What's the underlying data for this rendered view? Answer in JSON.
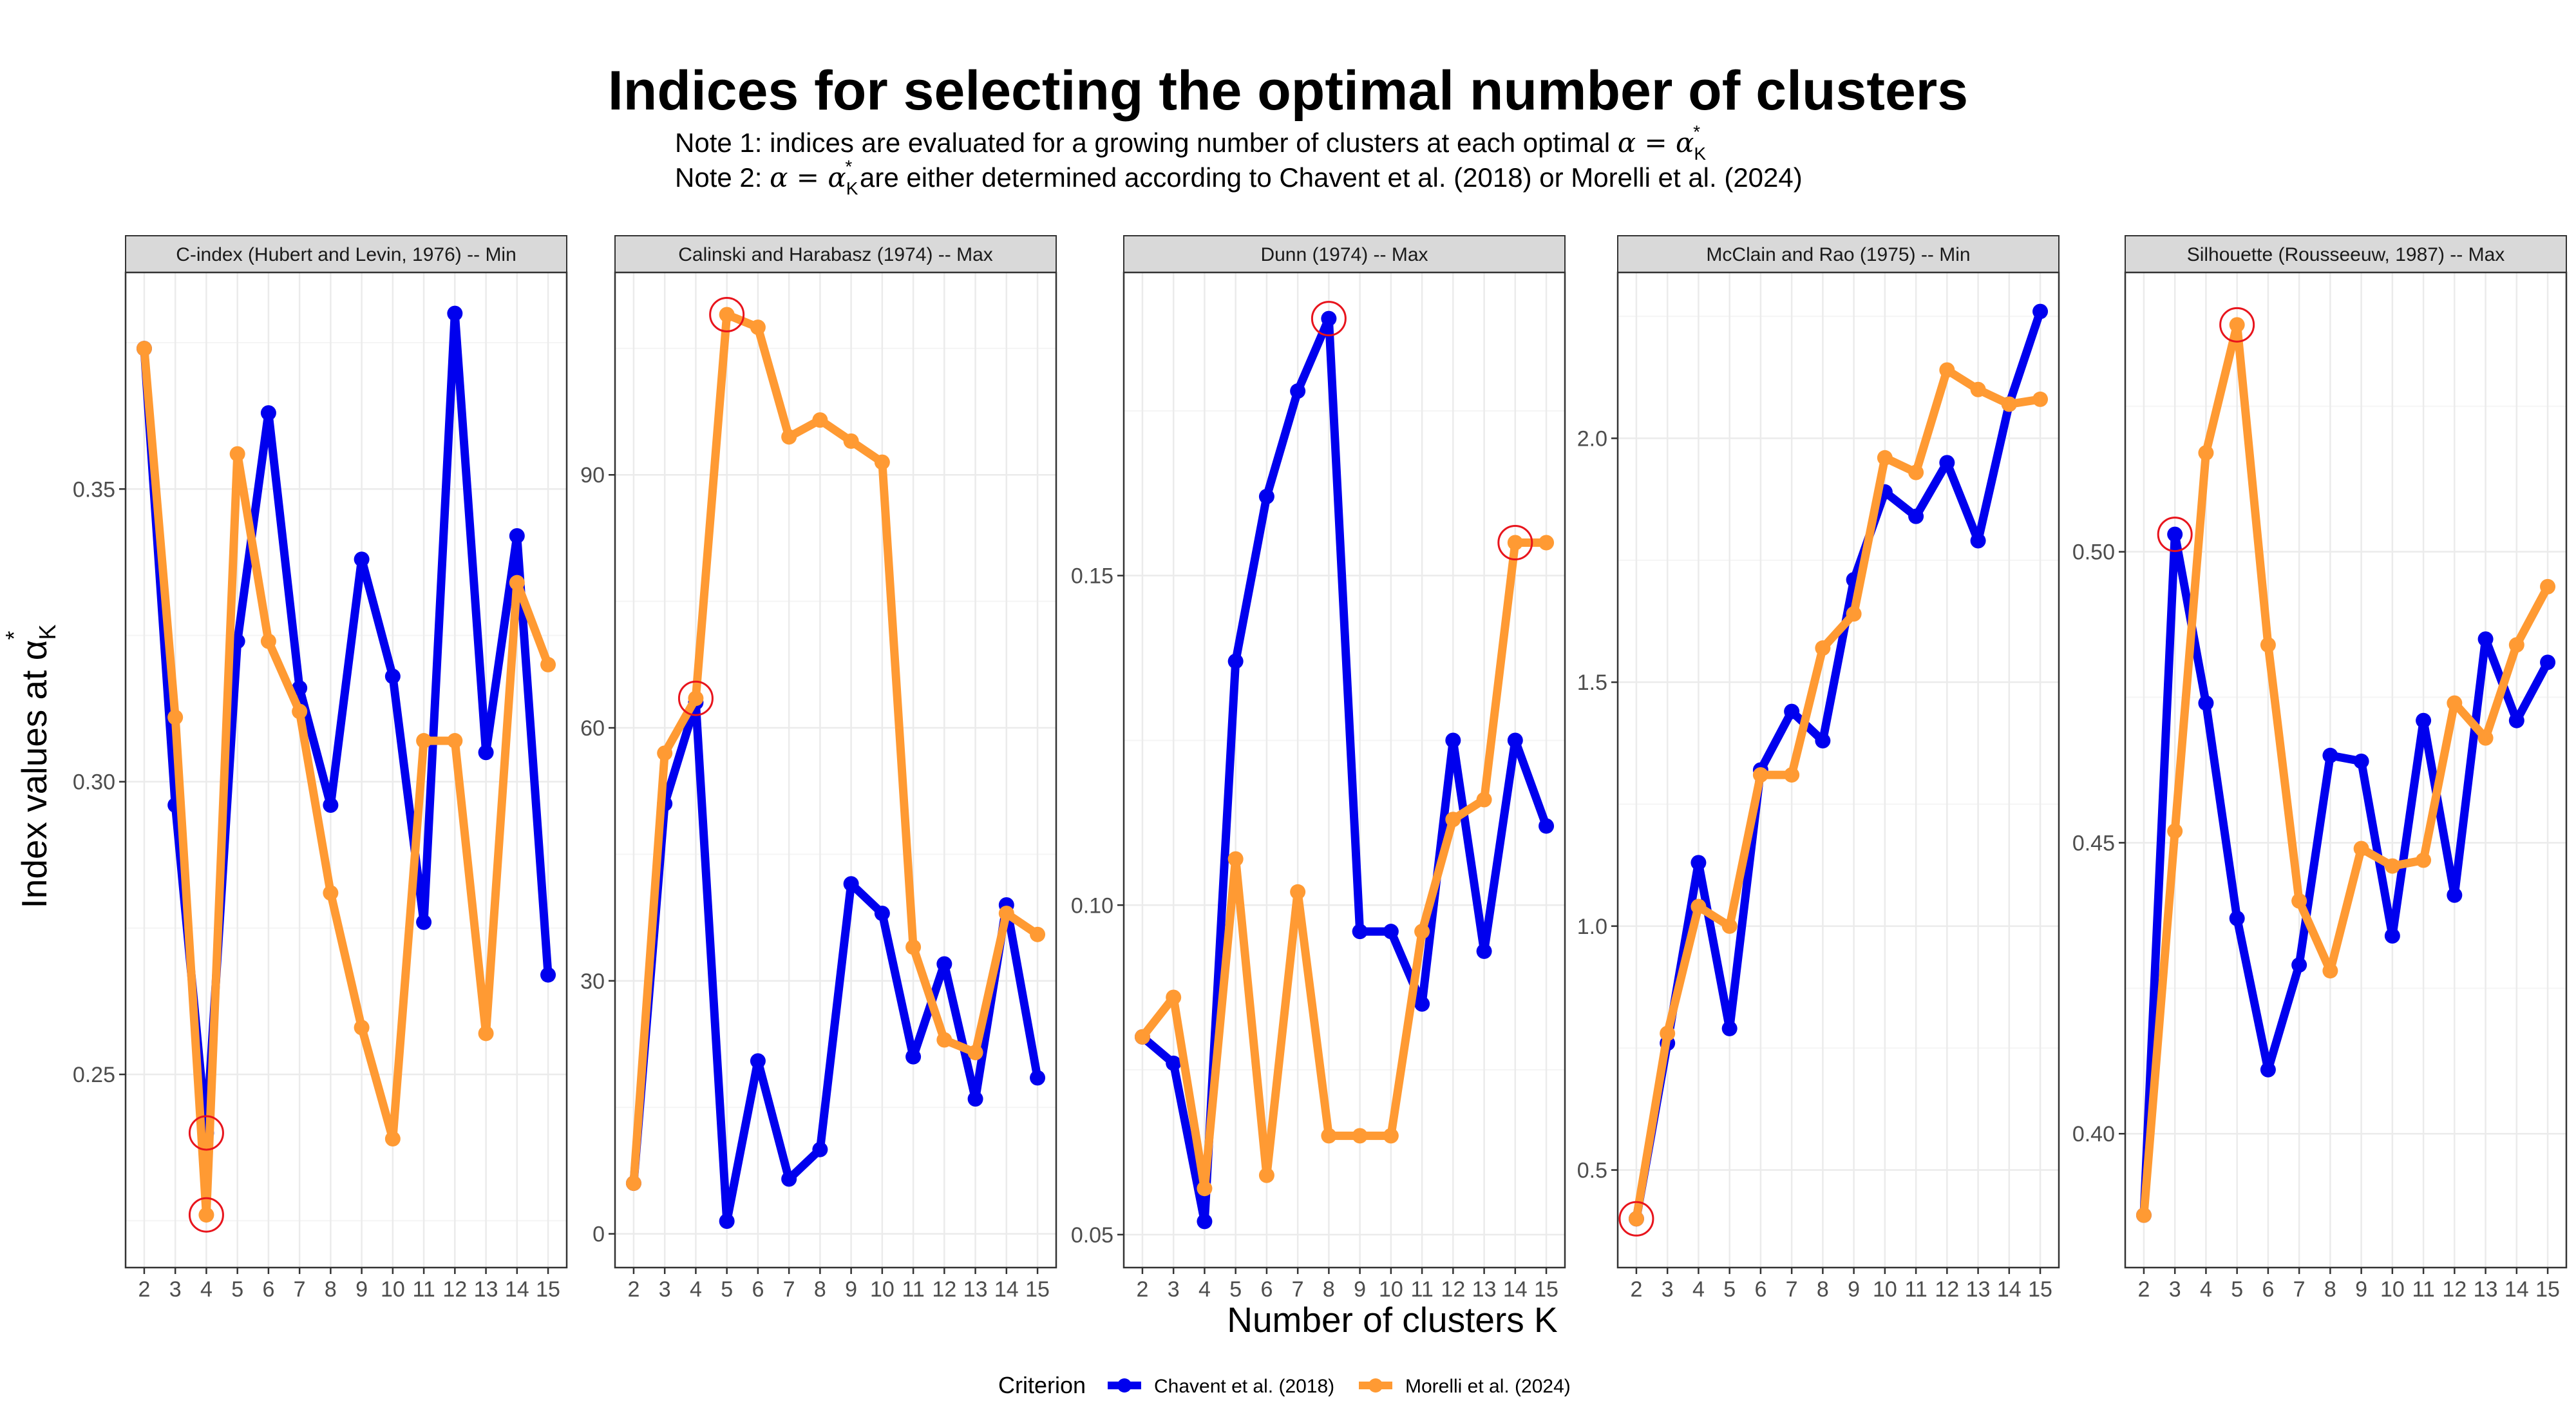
{
  "title": "Indices for selecting the optimal number of clusters",
  "notes": [
    {
      "prefix": "Note 1: indices are evaluated for a growing number of clusters at each optimal ",
      "suffix": ""
    },
    {
      "prefix": "Note 2: ",
      "suffix": " are either determined according to Chavent et al. (2018) or Morelli et al. (2024)"
    }
  ],
  "note_math": "α = α",
  "note_math_sub": "K",
  "note_math_sup": "*",
  "xlabel": "Number of clusters K",
  "ylabel_prefix": "Index values at α",
  "ylabel_sub": "K",
  "ylabel_sup": "*",
  "legend": {
    "title": "Criterion",
    "entries": [
      "Chavent et al. (2018)",
      "Morelli et al. (2024)"
    ]
  },
  "colors": {
    "chavent": "#0000ee",
    "morelli": "#ff9a33",
    "highlight": "#e8141c",
    "grid": "#ebebeb",
    "strip": "#d9d9d9"
  },
  "chart_data": [
    {
      "type": "line",
      "title": "C-index (Hubert and Levin, 1976) -- Min",
      "x": [
        2,
        3,
        4,
        5,
        6,
        7,
        8,
        9,
        10,
        11,
        12,
        13,
        14,
        15
      ],
      "ylim": [
        0.217,
        0.387
      ],
      "yticks": [
        0.25,
        0.3,
        0.35
      ],
      "ytick_labels": [
        "0.25",
        "0.30",
        "0.35"
      ],
      "series": [
        {
          "name": "Chavent et al. (2018)",
          "values": [
            0.374,
            0.296,
            0.24,
            0.324,
            0.363,
            0.316,
            0.296,
            0.338,
            0.318,
            0.276,
            0.38,
            0.305,
            0.342,
            0.267
          ]
        },
        {
          "name": "Morelli et al. (2024)",
          "values": [
            0.374,
            0.311,
            0.226,
            0.356,
            0.324,
            0.312,
            0.281,
            0.258,
            0.239,
            0.307,
            0.307,
            0.257,
            0.334,
            0.32
          ]
        }
      ],
      "highlights": [
        {
          "x": 4,
          "y": 0.24
        },
        {
          "x": 4,
          "y": 0.226
        }
      ]
    },
    {
      "type": "line",
      "title": "Calinski and Harabasz (1974) -- Max",
      "x": [
        2,
        3,
        4,
        5,
        6,
        7,
        8,
        9,
        10,
        11,
        12,
        13,
        14,
        15
      ],
      "ylim": [
        -4,
        114
      ],
      "yticks": [
        0,
        30,
        60,
        90
      ],
      "ytick_labels": [
        "0",
        "30",
        "60",
        "90"
      ],
      "series": [
        {
          "name": "Chavent et al. (2018)",
          "values": [
            6,
            51,
            63,
            1.5,
            20.5,
            6.5,
            10,
            41.5,
            38,
            21,
            32,
            16,
            39,
            18.5
          ]
        },
        {
          "name": "Morelli et al. (2024)",
          "values": [
            6,
            57,
            63.5,
            109,
            107.5,
            94.5,
            96.5,
            94,
            91.5,
            34,
            23,
            21.5,
            38,
            35.5
          ]
        }
      ],
      "highlights": [
        {
          "x": 4,
          "y": 63.5
        },
        {
          "x": 5,
          "y": 109
        }
      ]
    },
    {
      "type": "line",
      "title": "Dunn (1974) -- Max",
      "x": [
        2,
        3,
        4,
        5,
        6,
        7,
        8,
        9,
        10,
        11,
        12,
        13,
        14,
        15
      ],
      "ylim": [
        0.045,
        0.196
      ],
      "yticks": [
        0.05,
        0.1,
        0.15
      ],
      "ytick_labels": [
        "0.05",
        "0.10",
        "0.15"
      ],
      "series": [
        {
          "name": "Chavent et al. (2018)",
          "values": [
            0.08,
            0.076,
            0.052,
            0.137,
            0.162,
            0.178,
            0.189,
            0.096,
            0.096,
            0.085,
            0.125,
            0.093,
            0.125,
            0.112
          ]
        },
        {
          "name": "Morelli et al. (2024)",
          "values": [
            0.08,
            0.086,
            0.057,
            0.107,
            0.059,
            0.102,
            0.065,
            0.065,
            0.065,
            0.096,
            0.113,
            0.116,
            0.155,
            0.155
          ]
        }
      ],
      "highlights": [
        {
          "x": 8,
          "y": 0.189
        },
        {
          "x": 14,
          "y": 0.155
        }
      ]
    },
    {
      "type": "line",
      "title": "McClain and Rao (1975) -- Min",
      "x": [
        2,
        3,
        4,
        5,
        6,
        7,
        8,
        9,
        10,
        11,
        12,
        13,
        14,
        15
      ],
      "ylim": [
        0.3,
        2.34
      ],
      "yticks": [
        0.5,
        1.0,
        1.5,
        2.0
      ],
      "ytick_labels": [
        "0.5",
        "1.0",
        "1.5",
        "2.0"
      ],
      "series": [
        {
          "name": "Chavent et al. (2018)",
          "values": [
            0.4,
            0.76,
            1.13,
            0.79,
            1.32,
            1.44,
            1.38,
            1.71,
            1.89,
            1.84,
            1.95,
            1.79,
            2.07,
            2.26
          ]
        },
        {
          "name": "Morelli et al. (2024)",
          "values": [
            0.4,
            0.78,
            1.04,
            1.0,
            1.31,
            1.31,
            1.57,
            1.64,
            1.96,
            1.93,
            2.14,
            2.1,
            2.07,
            2.08
          ]
        }
      ],
      "highlights": [
        {
          "x": 2,
          "y": 0.4
        }
      ]
    },
    {
      "type": "line",
      "title": "Silhouette (Rousseeuw, 1987) -- Max",
      "x": [
        2,
        3,
        4,
        5,
        6,
        7,
        8,
        9,
        10,
        11,
        12,
        13,
        14,
        15
      ],
      "ylim": [
        0.377,
        0.548
      ],
      "yticks": [
        0.4,
        0.45,
        0.5
      ],
      "ytick_labels": [
        "0.40",
        "0.45",
        "0.50"
      ],
      "series": [
        {
          "name": "Chavent et al. (2018)",
          "values": [
            0.386,
            0.503,
            0.474,
            0.437,
            0.411,
            0.429,
            0.465,
            0.464,
            0.434,
            0.471,
            0.441,
            0.485,
            0.471,
            0.481
          ]
        },
        {
          "name": "Morelli et al. (2024)",
          "values": [
            0.386,
            0.452,
            0.517,
            0.539,
            0.484,
            0.44,
            0.428,
            0.449,
            0.446,
            0.447,
            0.474,
            0.468,
            0.484,
            0.494
          ]
        }
      ],
      "highlights": [
        {
          "x": 3,
          "y": 0.503
        },
        {
          "x": 5,
          "y": 0.539
        }
      ]
    }
  ]
}
